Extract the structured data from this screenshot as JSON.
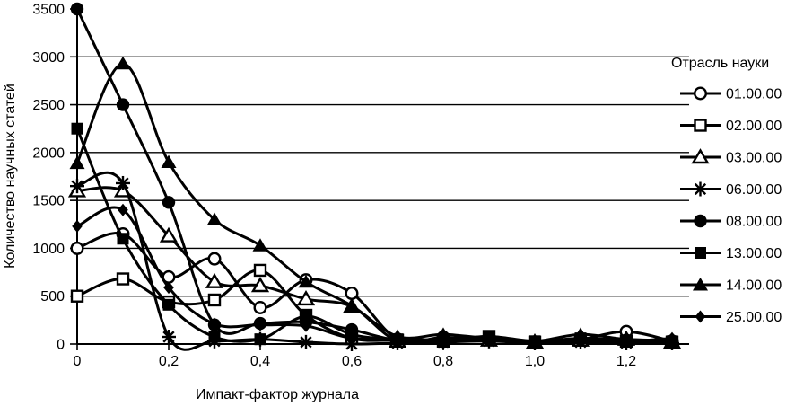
{
  "chart_data": {
    "type": "line",
    "title": "",
    "xlabel": "Импакт-фактор журнала",
    "ylabel": "Количество научных статей",
    "legend_title": "Отрасль науки",
    "legend_position": "right",
    "grid": "horizontal",
    "line_color": "#000000",
    "background_color": "#ffffff",
    "x": [
      0,
      0.1,
      0.2,
      0.3,
      0.4,
      0.5,
      0.6,
      0.7,
      0.8,
      0.9,
      1.0,
      1.1,
      1.2,
      1.3
    ],
    "xlim": [
      0,
      1.34
    ],
    "ylim": [
      0,
      3500
    ],
    "y_ticks": [
      0,
      500,
      1000,
      1500,
      2000,
      2500,
      3000,
      3500
    ],
    "y_tick_labels": [
      "0",
      "500",
      "1000",
      "1500",
      "2000",
      "2500",
      "3000",
      "3500"
    ],
    "x_tick_values": [
      0,
      0.2,
      0.4,
      0.6,
      0.8,
      1.0,
      1.2
    ],
    "x_tick_labels": [
      "0",
      "0,2",
      "0,4",
      "0,6",
      "0,8",
      "1,0",
      "1,2"
    ],
    "series": [
      {
        "name": "01.00.00",
        "marker": "circle-open",
        "values": [
          1000,
          1150,
          700,
          890,
          380,
          670,
          530,
          50,
          70,
          50,
          20,
          50,
          130,
          30
        ]
      },
      {
        "name": "02.00.00",
        "marker": "square-open",
        "values": [
          500,
          680,
          440,
          460,
          770,
          300,
          60,
          40,
          30,
          80,
          20,
          40,
          30,
          20
        ]
      },
      {
        "name": "03.00.00",
        "marker": "triangle-open",
        "values": [
          1600,
          1600,
          1130,
          650,
          610,
          470,
          390,
          30,
          60,
          40,
          20,
          40,
          50,
          20
        ]
      },
      {
        "name": "06.00.00",
        "marker": "asterisk",
        "values": [
          1650,
          1680,
          75,
          30,
          50,
          20,
          0,
          10,
          20,
          30,
          10,
          20,
          10,
          10
        ]
      },
      {
        "name": "08.00.00",
        "marker": "circle-filled",
        "values": [
          3500,
          2500,
          1480,
          200,
          215,
          230,
          150,
          40,
          50,
          60,
          20,
          50,
          40,
          30
        ]
      },
      {
        "name": "13.00.00",
        "marker": "square-filled",
        "values": [
          2250,
          1100,
          410,
          75,
          50,
          290,
          100,
          50,
          40,
          80,
          30,
          60,
          40,
          30
        ]
      },
      {
        "name": "14.00.00",
        "marker": "triangle-filled",
        "values": [
          1890,
          2930,
          1900,
          1300,
          1030,
          650,
          400,
          80,
          100,
          60,
          30,
          100,
          50,
          40
        ]
      },
      {
        "name": "25.00.00",
        "marker": "diamond-filled",
        "values": [
          1230,
          1400,
          590,
          210,
          200,
          190,
          60,
          60,
          40,
          50,
          20,
          60,
          30,
          60
        ]
      }
    ]
  }
}
